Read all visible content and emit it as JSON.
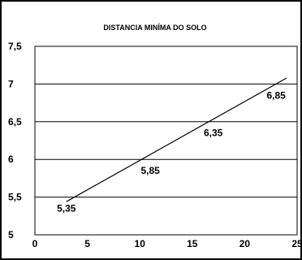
{
  "chart_data": {
    "type": "line",
    "title": "DISTANCIA MINÍMA DO SOLO",
    "xlabel": "",
    "ylabel": "",
    "xlim": [
      0,
      25
    ],
    "ylim": [
      5,
      7.5
    ],
    "x_ticks": [
      0,
      5,
      10,
      15,
      20,
      25
    ],
    "x_tick_labels": [
      "0",
      "5",
      "10",
      "15",
      "20",
      "25"
    ],
    "y_ticks": [
      5,
      5.5,
      6,
      6.5,
      7,
      7.5
    ],
    "y_tick_labels": [
      "5",
      "5,5",
      "6",
      "6,5",
      "7",
      "7,5"
    ],
    "grid": "horizontal",
    "line": {
      "x": [
        3,
        24
      ],
      "y": [
        5.44,
        7.08
      ]
    },
    "points": [
      {
        "x": 3,
        "y": 5.35,
        "label": "5,35"
      },
      {
        "x": 11,
        "y": 5.85,
        "label": "5,85"
      },
      {
        "x": 17,
        "y": 6.35,
        "label": "6,35"
      },
      {
        "x": 23,
        "y": 6.85,
        "label": "6,85"
      }
    ],
    "colors": {
      "line": "#000000",
      "grid": "#000000",
      "background": "#ffffff"
    }
  }
}
